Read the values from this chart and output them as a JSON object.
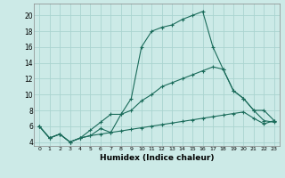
{
  "title": "",
  "xlabel": "Humidex (Indice chaleur)",
  "background_color": "#cceae7",
  "grid_color": "#aad4d0",
  "line_color": "#1a6b5a",
  "xlim": [
    -0.5,
    23.5
  ],
  "ylim": [
    3.5,
    21.5
  ],
  "yticks": [
    4,
    6,
    8,
    10,
    12,
    14,
    16,
    18,
    20
  ],
  "xticks": [
    0,
    1,
    2,
    3,
    4,
    5,
    6,
    7,
    8,
    9,
    10,
    11,
    12,
    13,
    14,
    15,
    16,
    17,
    18,
    19,
    20,
    21,
    22,
    23
  ],
  "series1_x": [
    0,
    1,
    2,
    3,
    4,
    5,
    6,
    7,
    8,
    9,
    10,
    11,
    12,
    13,
    14,
    15,
    16,
    17,
    18,
    19,
    20,
    21,
    22,
    23
  ],
  "series1_y": [
    6,
    4.5,
    5,
    4,
    4.5,
    4.8,
    5.7,
    5.2,
    7.5,
    9.5,
    16,
    18,
    18.5,
    18.8,
    19.5,
    20,
    20.5,
    16,
    13.2,
    10.5,
    9.5,
    8.0,
    6.7,
    6.5
  ],
  "series2_x": [
    0,
    1,
    2,
    3,
    4,
    5,
    6,
    7,
    8,
    9,
    10,
    11,
    12,
    13,
    14,
    15,
    16,
    17,
    18,
    19,
    20,
    21,
    22,
    23
  ],
  "series2_y": [
    6,
    4.5,
    5,
    4,
    4.5,
    5.5,
    6.5,
    7.5,
    7.5,
    8.0,
    9.2,
    10.0,
    11.0,
    11.5,
    12.0,
    12.5,
    13.0,
    13.5,
    13.2,
    10.5,
    9.5,
    8.0,
    8.0,
    6.7
  ],
  "series3_x": [
    0,
    1,
    2,
    3,
    4,
    5,
    6,
    7,
    8,
    9,
    10,
    11,
    12,
    13,
    14,
    15,
    16,
    17,
    18,
    19,
    20,
    21,
    22,
    23
  ],
  "series3_y": [
    6,
    4.5,
    5,
    4,
    4.5,
    4.8,
    5.0,
    5.2,
    5.4,
    5.6,
    5.8,
    6.0,
    6.2,
    6.4,
    6.6,
    6.8,
    7.0,
    7.2,
    7.4,
    7.6,
    7.8,
    7.0,
    6.3,
    6.7
  ]
}
